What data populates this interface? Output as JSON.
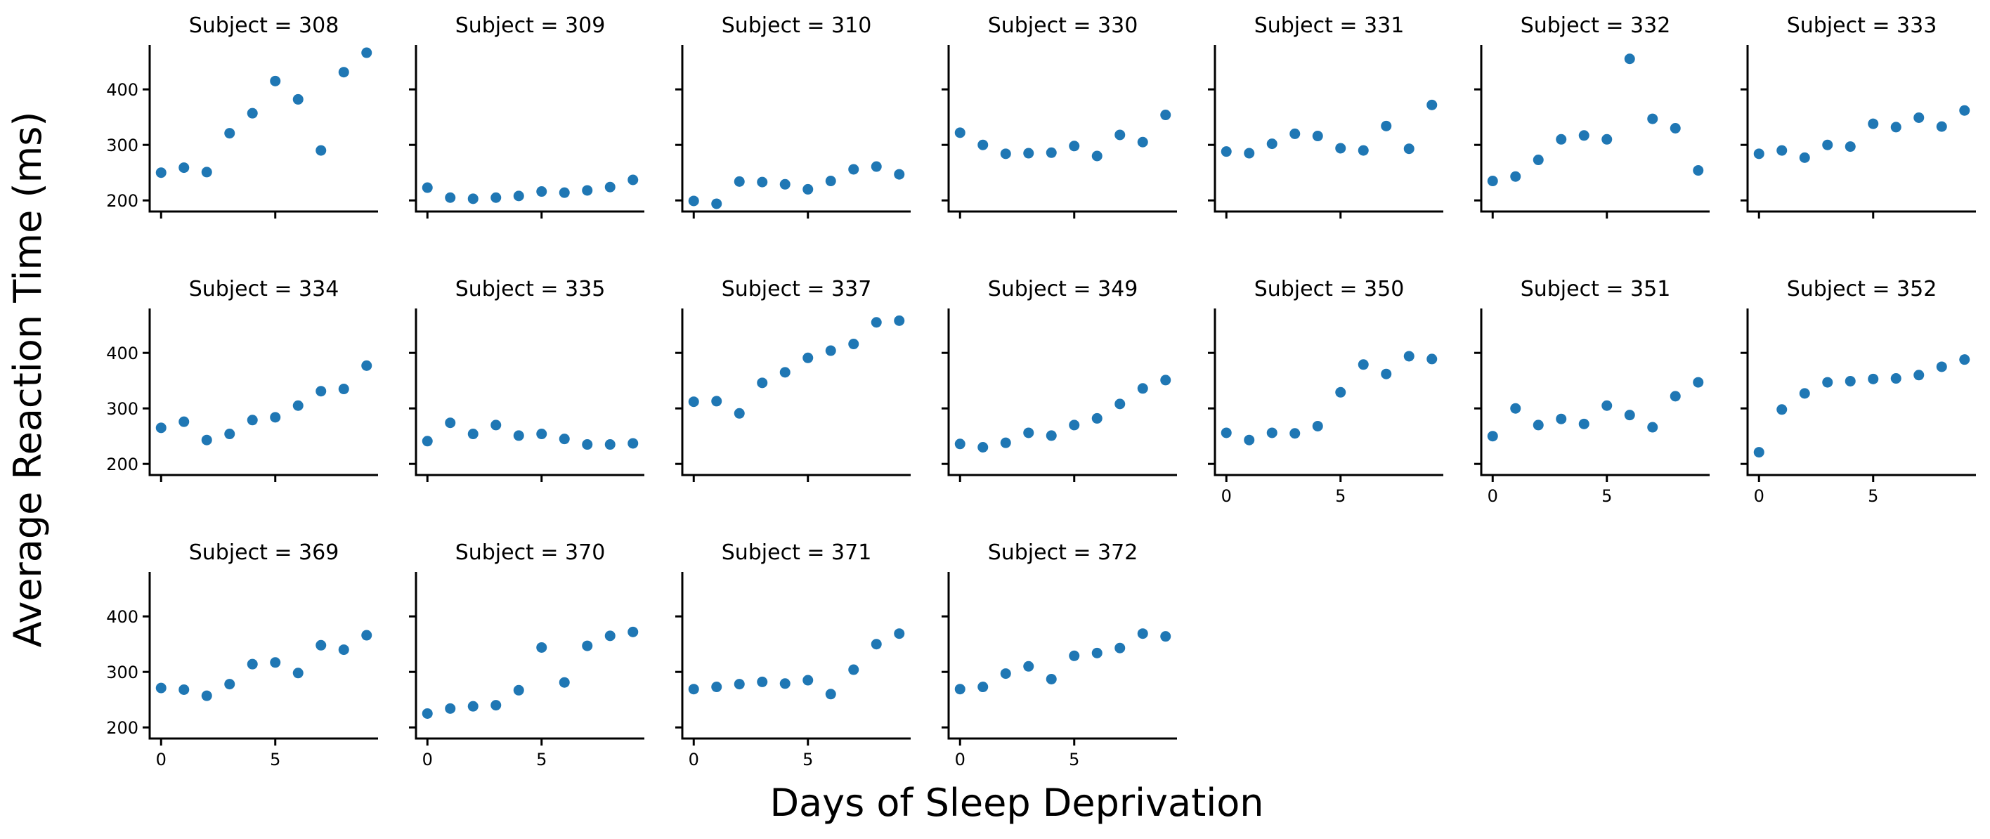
{
  "chart_data": {
    "type": "scatter",
    "xlabel": "Days of Sleep Deprivation",
    "ylabel": "Average Reaction Time (ms)",
    "xlim": [
      -0.5,
      9.5
    ],
    "ylim": [
      180,
      480
    ],
    "xticks": [
      0,
      5
    ],
    "yticks": [
      200,
      300,
      400
    ],
    "grid": false,
    "x": [
      0,
      1,
      2,
      3,
      4,
      5,
      6,
      7,
      8,
      9
    ],
    "panels": [
      {
        "title": "Subject = 308",
        "y": [
          250,
          259,
          251,
          321,
          357,
          415,
          382,
          290,
          431,
          466
        ]
      },
      {
        "title": "Subject = 309",
        "y": [
          223,
          205,
          203,
          205,
          208,
          216,
          214,
          218,
          224,
          237
        ]
      },
      {
        "title": "Subject = 310",
        "y": [
          199,
          194,
          234,
          233,
          229,
          220,
          235,
          256,
          261,
          247
        ]
      },
      {
        "title": "Subject = 330",
        "y": [
          322,
          300,
          284,
          285,
          286,
          298,
          280,
          318,
          305,
          354
        ]
      },
      {
        "title": "Subject = 331",
        "y": [
          288,
          285,
          302,
          320,
          316,
          294,
          290,
          334,
          293,
          372
        ]
      },
      {
        "title": "Subject = 332",
        "y": [
          235,
          243,
          273,
          310,
          317,
          310,
          455,
          347,
          330,
          254
        ]
      },
      {
        "title": "Subject = 333",
        "y": [
          284,
          290,
          277,
          300,
          297,
          338,
          332,
          349,
          333,
          362
        ]
      },
      {
        "title": "Subject = 334",
        "y": [
          265,
          276,
          243,
          254,
          279,
          284,
          305,
          331,
          335,
          377
        ]
      },
      {
        "title": "Subject = 335",
        "y": [
          241,
          274,
          254,
          270,
          251,
          254,
          245,
          235,
          235,
          237
        ]
      },
      {
        "title": "Subject = 337",
        "y": [
          312,
          313,
          291,
          346,
          365,
          391,
          404,
          416,
          455,
          458
        ]
      },
      {
        "title": "Subject = 349",
        "y": [
          236,
          230,
          238,
          256,
          251,
          270,
          282,
          308,
          336,
          351
        ]
      },
      {
        "title": "Subject = 350",
        "y": [
          256,
          243,
          256,
          255,
          268,
          329,
          379,
          362,
          394,
          389
        ]
      },
      {
        "title": "Subject = 351",
        "y": [
          250,
          300,
          270,
          281,
          272,
          305,
          288,
          266,
          322,
          347
        ]
      },
      {
        "title": "Subject = 352",
        "y": [
          221,
          298,
          327,
          347,
          349,
          353,
          354,
          360,
          375,
          388
        ]
      },
      {
        "title": "Subject = 369",
        "y": [
          271,
          268,
          257,
          278,
          314,
          317,
          298,
          348,
          340,
          366
        ]
      },
      {
        "title": "Subject = 370",
        "y": [
          225,
          234,
          238,
          240,
          267,
          344,
          281,
          347,
          365,
          372
        ]
      },
      {
        "title": "Subject = 371",
        "y": [
          269,
          273,
          278,
          282,
          279,
          285,
          260,
          304,
          350,
          369
        ]
      },
      {
        "title": "Subject = 372",
        "y": [
          269,
          273,
          297,
          310,
          287,
          329,
          334,
          343,
          369,
          364
        ]
      }
    ]
  },
  "style": {
    "point_color": "#1f77b4",
    "axis_color": "#000000"
  }
}
